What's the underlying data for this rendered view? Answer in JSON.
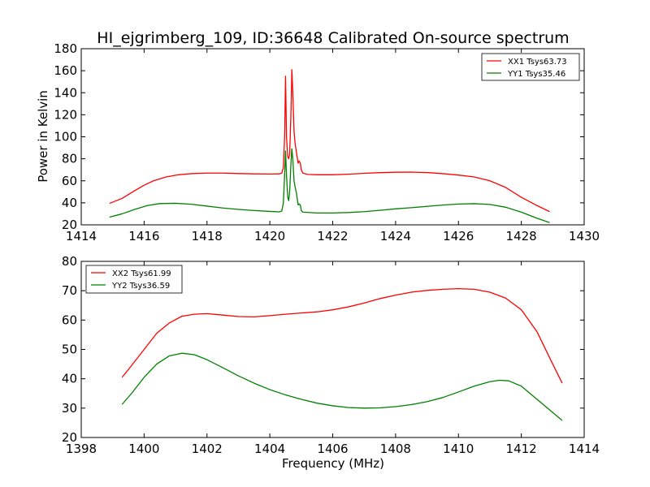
{
  "title": "HI_ejgrimberg_109, ID:36648 Calibrated On-source spectrum",
  "chart_data": [
    {
      "type": "line",
      "xlim": [
        1414,
        1430
      ],
      "ylim": [
        20,
        180
      ],
      "xticks": [
        1414,
        1416,
        1418,
        1420,
        1422,
        1424,
        1426,
        1428,
        1430
      ],
      "yticks": [
        20,
        40,
        60,
        80,
        100,
        120,
        140,
        160,
        180
      ],
      "xlabel": "",
      "ylabel": "Power in Kelvin",
      "legend_position": "upper right",
      "grid": false,
      "series": [
        {
          "name": "XX1 Tsys63.73",
          "color": "#ff0000",
          "points": [
            [
              1414.9,
              39.5
            ],
            [
              1415.3,
              44
            ],
            [
              1415.7,
              51
            ],
            [
              1416,
              56
            ],
            [
              1416.3,
              60
            ],
            [
              1416.7,
              63.5
            ],
            [
              1417.1,
              65.5
            ],
            [
              1417.5,
              66.5
            ],
            [
              1418,
              67
            ],
            [
              1418.5,
              67
            ],
            [
              1419,
              66.6
            ],
            [
              1419.5,
              66.3
            ],
            [
              1420,
              66.2
            ],
            [
              1420.3,
              66.3
            ],
            [
              1420.38,
              67
            ],
            [
              1420.43,
              72
            ],
            [
              1420.47,
              100
            ],
            [
              1420.5,
              155
            ],
            [
              1420.53,
              100
            ],
            [
              1420.57,
              82
            ],
            [
              1420.6,
              80
            ],
            [
              1420.63,
              84
            ],
            [
              1420.67,
              120
            ],
            [
              1420.7,
              161
            ],
            [
              1420.73,
              140
            ],
            [
              1420.77,
              105
            ],
            [
              1420.8,
              95
            ],
            [
              1420.85,
              85
            ],
            [
              1420.9,
              76
            ],
            [
              1420.93,
              78
            ],
            [
              1420.97,
              76
            ],
            [
              1421,
              70
            ],
            [
              1421.05,
              67
            ],
            [
              1421.2,
              65.8
            ],
            [
              1421.5,
              65.5
            ],
            [
              1422,
              65.5
            ],
            [
              1422.5,
              66
            ],
            [
              1423,
              66.8
            ],
            [
              1423.5,
              67.4
            ],
            [
              1424,
              67.8
            ],
            [
              1424.5,
              67.9
            ],
            [
              1425,
              67.5
            ],
            [
              1425.5,
              66.5
            ],
            [
              1426,
              65.2
            ],
            [
              1426.5,
              63.5
            ],
            [
              1427,
              60
            ],
            [
              1427.5,
              54
            ],
            [
              1428,
              45
            ],
            [
              1428.5,
              37.5
            ],
            [
              1428.9,
              32
            ]
          ]
        },
        {
          "name": "YY1 Tsys35.46",
          "color": "#008000",
          "points": [
            [
              1414.9,
              27
            ],
            [
              1415.3,
              30
            ],
            [
              1415.7,
              34
            ],
            [
              1416.1,
              37.5
            ],
            [
              1416.5,
              39.3
            ],
            [
              1417,
              39.6
            ],
            [
              1417.5,
              38.7
            ],
            [
              1418,
              37
            ],
            [
              1418.5,
              35.3
            ],
            [
              1419,
              34
            ],
            [
              1419.5,
              33
            ],
            [
              1420,
              32.2
            ],
            [
              1420.3,
              31.8
            ],
            [
              1420.38,
              32.5
            ],
            [
              1420.43,
              40
            ],
            [
              1420.47,
              65
            ],
            [
              1420.5,
              87
            ],
            [
              1420.53,
              65
            ],
            [
              1420.57,
              45
            ],
            [
              1420.6,
              42
            ],
            [
              1420.63,
              50
            ],
            [
              1420.67,
              75
            ],
            [
              1420.7,
              89
            ],
            [
              1420.73,
              80
            ],
            [
              1420.77,
              60
            ],
            [
              1420.8,
              55
            ],
            [
              1420.85,
              48
            ],
            [
              1420.9,
              38
            ],
            [
              1420.93,
              39
            ],
            [
              1420.97,
              38
            ],
            [
              1421,
              33
            ],
            [
              1421.05,
              31.5
            ],
            [
              1421.5,
              30.8
            ],
            [
              1422,
              30.8
            ],
            [
              1422.5,
              31.2
            ],
            [
              1423,
              32
            ],
            [
              1423.5,
              33.2
            ],
            [
              1424,
              34.5
            ],
            [
              1424.5,
              35.6
            ],
            [
              1425,
              36.8
            ],
            [
              1425.5,
              38
            ],
            [
              1426,
              38.9
            ],
            [
              1426.5,
              39.2
            ],
            [
              1427,
              38.5
            ],
            [
              1427.5,
              36
            ],
            [
              1428,
              31.5
            ],
            [
              1428.5,
              26
            ],
            [
              1428.9,
              22
            ]
          ]
        }
      ]
    },
    {
      "type": "line",
      "xlim": [
        1398,
        1414
      ],
      "ylim": [
        20,
        80
      ],
      "xticks": [
        1398,
        1400,
        1402,
        1404,
        1406,
        1408,
        1410,
        1412,
        1414
      ],
      "yticks": [
        20,
        30,
        40,
        50,
        60,
        70,
        80
      ],
      "xlabel": "Frequency (MHz)",
      "ylabel": "",
      "legend_position": "upper left",
      "grid": false,
      "series": [
        {
          "name": "XX2 Tsys61.99",
          "color": "#ff0000",
          "points": [
            [
              1399.3,
              40.5
            ],
            [
              1399.6,
              44.5
            ],
            [
              1400,
              50
            ],
            [
              1400.4,
              55.5
            ],
            [
              1400.8,
              59
            ],
            [
              1401.2,
              61.3
            ],
            [
              1401.6,
              62
            ],
            [
              1402,
              62.2
            ],
            [
              1402.5,
              61.7
            ],
            [
              1403,
              61.2
            ],
            [
              1403.5,
              61.1
            ],
            [
              1404,
              61.5
            ],
            [
              1404.5,
              62
            ],
            [
              1405,
              62.4
            ],
            [
              1405.5,
              62.8
            ],
            [
              1406,
              63.5
            ],
            [
              1406.5,
              64.5
            ],
            [
              1407,
              65.8
            ],
            [
              1407.5,
              67.3
            ],
            [
              1408,
              68.5
            ],
            [
              1408.5,
              69.5
            ],
            [
              1409,
              70.1
            ],
            [
              1409.5,
              70.5
            ],
            [
              1410,
              70.7
            ],
            [
              1410.5,
              70.5
            ],
            [
              1411,
              69.5
            ],
            [
              1411.5,
              67.5
            ],
            [
              1412,
              63.5
            ],
            [
              1412.5,
              56
            ],
            [
              1413,
              45
            ],
            [
              1413.3,
              38.5
            ]
          ]
        },
        {
          "name": "YY2 Tsys36.59",
          "color": "#008000",
          "points": [
            [
              1399.3,
              31.3
            ],
            [
              1399.6,
              35
            ],
            [
              1400,
              40.5
            ],
            [
              1400.4,
              45
            ],
            [
              1400.8,
              47.8
            ],
            [
              1401.2,
              48.7
            ],
            [
              1401.6,
              48.2
            ],
            [
              1402,
              46.5
            ],
            [
              1402.5,
              43.8
            ],
            [
              1403,
              41
            ],
            [
              1403.5,
              38.5
            ],
            [
              1404,
              36.3
            ],
            [
              1404.5,
              34.5
            ],
            [
              1405,
              33
            ],
            [
              1405.5,
              31.7
            ],
            [
              1406,
              30.8
            ],
            [
              1406.5,
              30.2
            ],
            [
              1407,
              30
            ],
            [
              1407.5,
              30.1
            ],
            [
              1408,
              30.5
            ],
            [
              1408.5,
              31.2
            ],
            [
              1409,
              32.2
            ],
            [
              1409.5,
              33.6
            ],
            [
              1410,
              35.5
            ],
            [
              1410.5,
              37.5
            ],
            [
              1411,
              39
            ],
            [
              1411.3,
              39.5
            ],
            [
              1411.6,
              39.3
            ],
            [
              1412,
              37.5
            ],
            [
              1412.5,
              33
            ],
            [
              1413,
              28.5
            ],
            [
              1413.3,
              25.8
            ]
          ]
        }
      ]
    }
  ]
}
